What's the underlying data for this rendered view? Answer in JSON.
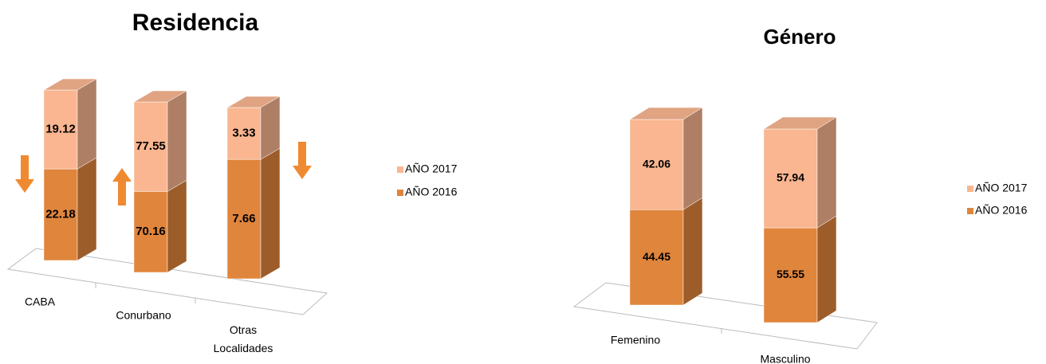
{
  "chart_data": [
    {
      "type": "bar_stacked_percent",
      "title": "Residencia",
      "categories": [
        "CABA",
        "Conurbano",
        "Otras Localidades"
      ],
      "series": [
        {
          "name": "AÑO 2016",
          "color": "#e0853c",
          "values": [
            22.18,
            70.16,
            7.66
          ]
        },
        {
          "name": "AÑO 2017",
          "color": "#f9b690",
          "values": [
            19.12,
            77.55,
            3.33
          ]
        }
      ],
      "legend": "right"
    },
    {
      "type": "bar_stacked_percent",
      "title": "Género",
      "categories": [
        "Femenino",
        "Masculino"
      ],
      "series": [
        {
          "name": "AÑO 2016",
          "color": "#e0853c",
          "values": [
            44.45,
            55.55
          ]
        },
        {
          "name": "AÑO 2017",
          "color": "#f9b690",
          "values": [
            42.06,
            57.94
          ]
        }
      ],
      "legend": "right"
    }
  ]
}
